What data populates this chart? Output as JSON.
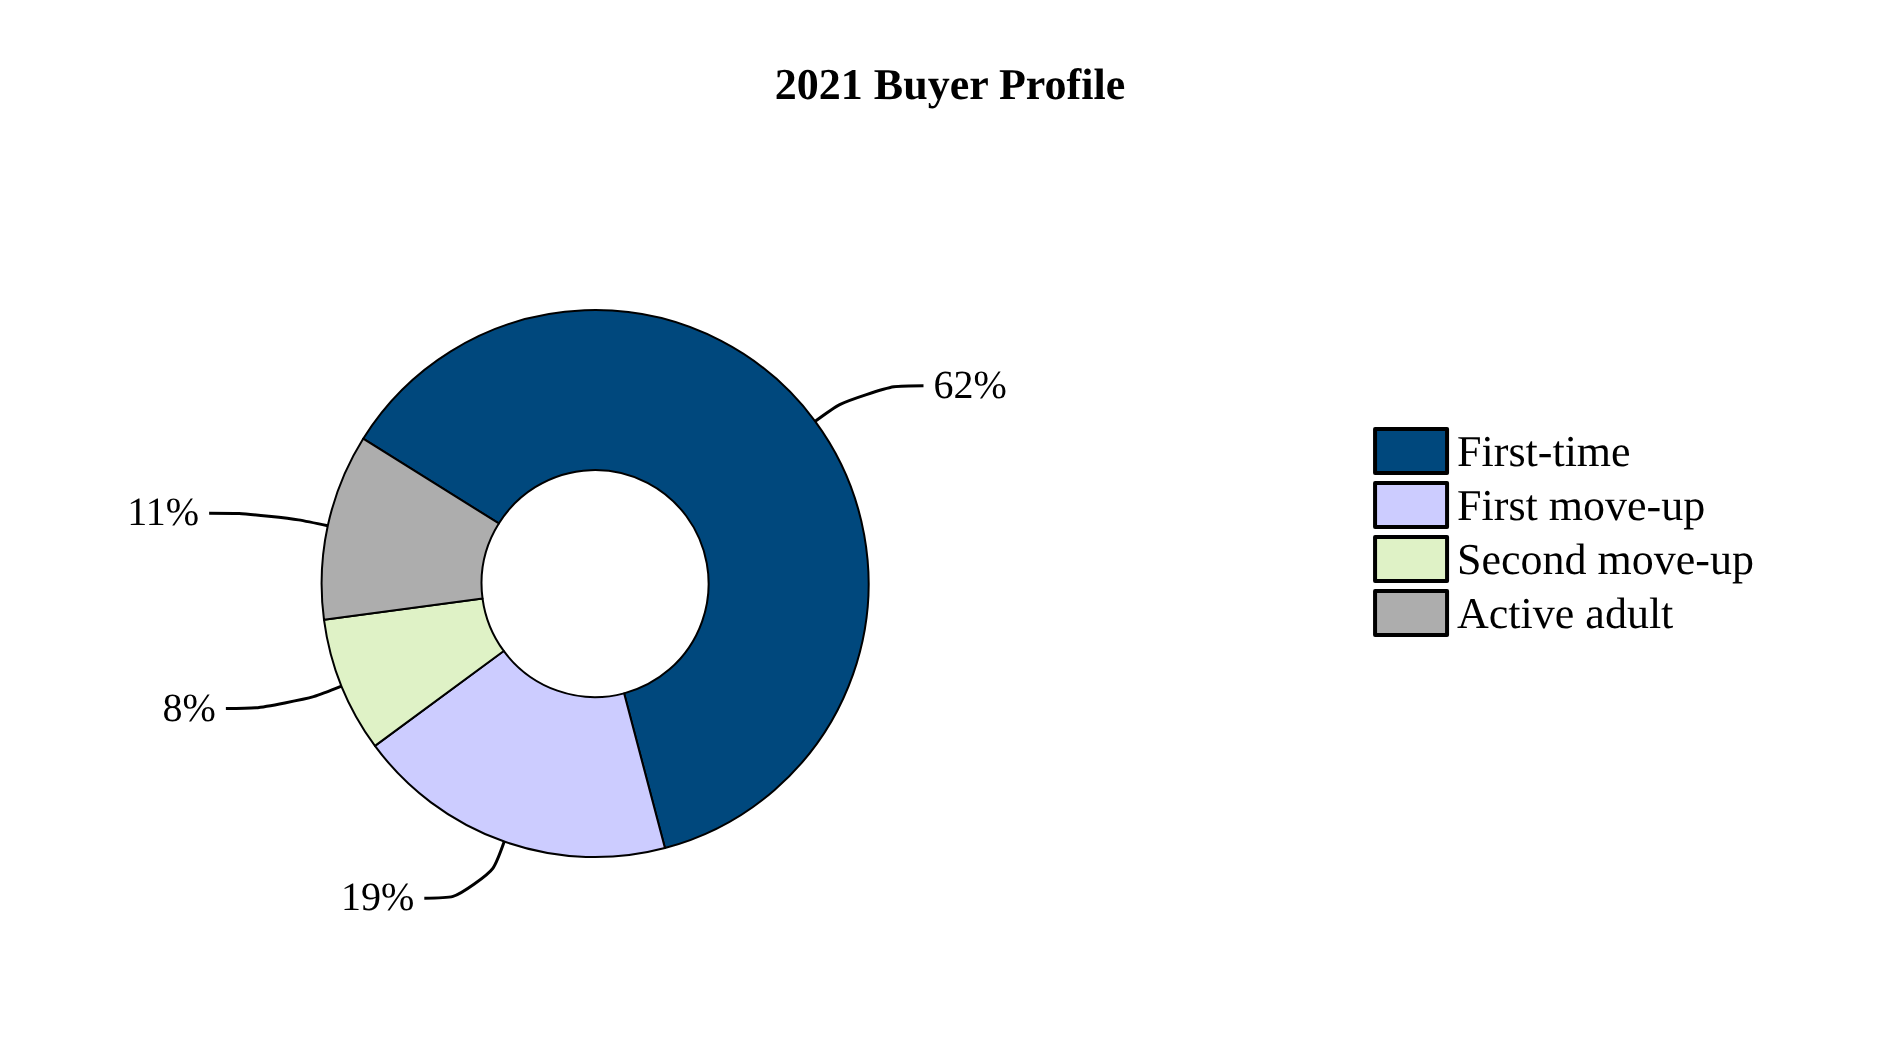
{
  "chart_data": {
    "type": "donut",
    "title": "2021 Buyer Profile",
    "categories": [
      "First-time",
      "First move-up",
      "Second move-up",
      "Active adult"
    ],
    "values": [
      62,
      19,
      8,
      11
    ],
    "value_labels": [
      "62%",
      "19%",
      "8%",
      "11%"
    ],
    "colors": [
      "#00487d",
      "#ccccff",
      "#dff2c6",
      "#adadad"
    ],
    "legend": "right"
  }
}
